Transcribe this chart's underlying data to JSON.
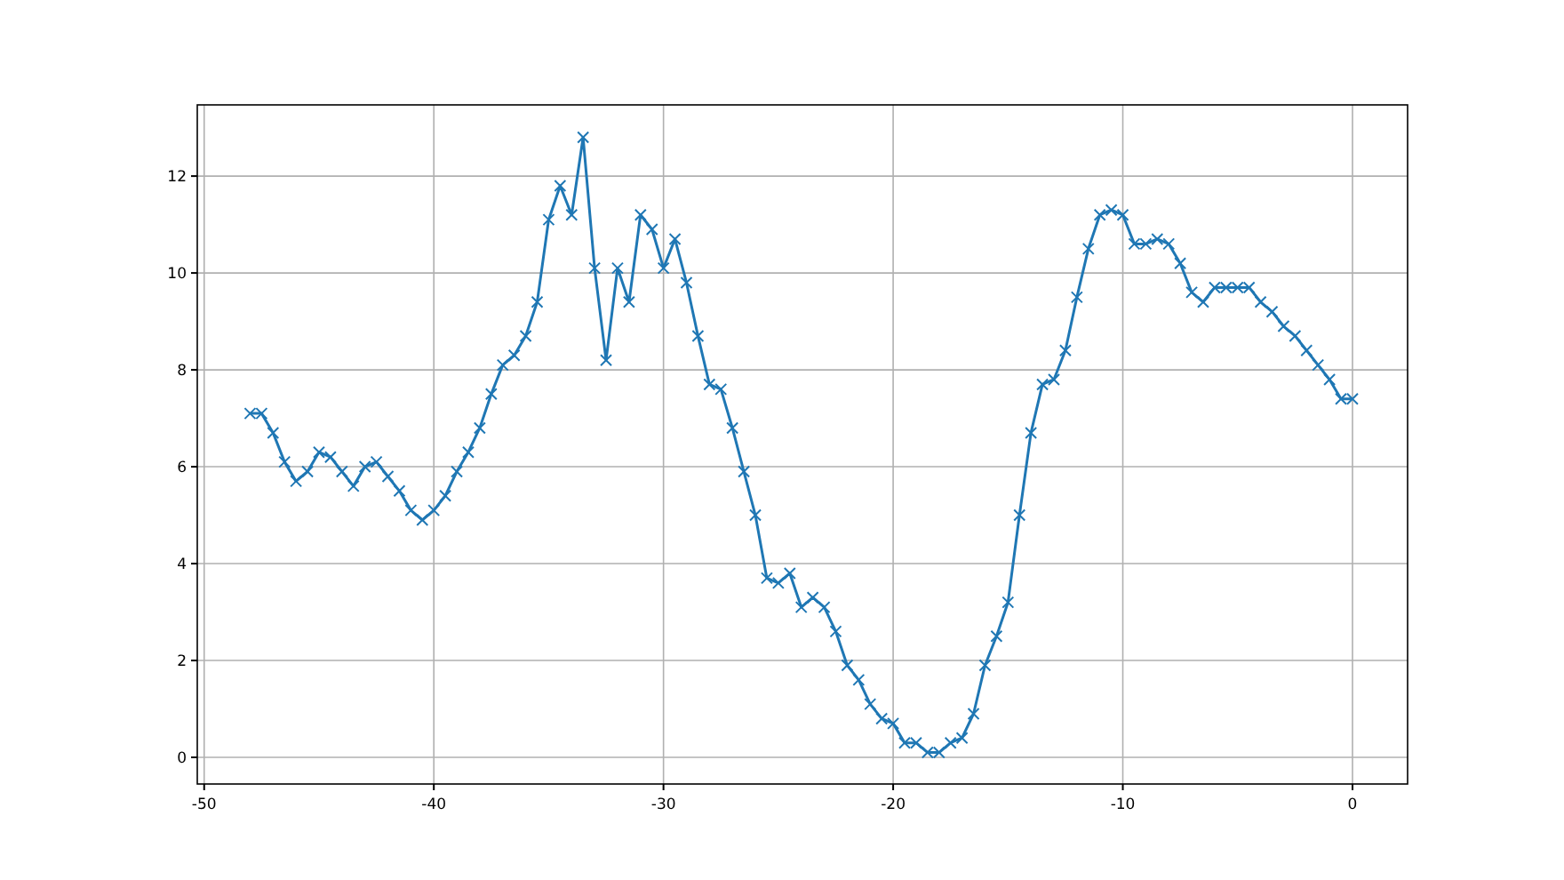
{
  "chart_data": {
    "type": "line",
    "x": [
      -48,
      -47.5,
      -47,
      -46.5,
      -46,
      -45.5,
      -45,
      -44.5,
      -44,
      -43.5,
      -43,
      -42.5,
      -42,
      -41.5,
      -41,
      -40.5,
      -40,
      -39.5,
      -39,
      -38.5,
      -38,
      -37.5,
      -37,
      -36.5,
      -36,
      -35.5,
      -35,
      -34.5,
      -34,
      -33.5,
      -33,
      -32.5,
      -32,
      -31.5,
      -31,
      -30.5,
      -30,
      -29.5,
      -29,
      -28.5,
      -28,
      -27.5,
      -27,
      -26.5,
      -26,
      -25.5,
      -25,
      -24.5,
      -24,
      -23.5,
      -23,
      -22.5,
      -22,
      -21.5,
      -21,
      -20.5,
      -20,
      -19.5,
      -19,
      -18.5,
      -18,
      -17.5,
      -17,
      -16.5,
      -16,
      -15.5,
      -15,
      -14.5,
      -14,
      -13.5,
      -13,
      -12.5,
      -12,
      -11.5,
      -11,
      -10.5,
      -10,
      -9.5,
      -9,
      -8.5,
      -8,
      -7.5,
      -7,
      -6.5,
      -6,
      -5.5,
      -5,
      -4.5,
      -4,
      -3.5,
      -3,
      -2.5,
      -2,
      -1.5,
      -1,
      -0.5,
      0
    ],
    "series": [
      {
        "color": "#1f77b4",
        "values": [
          7.1,
          7.1,
          6.7,
          6.1,
          5.7,
          5.9,
          6.3,
          6.2,
          5.9,
          5.6,
          6.0,
          6.1,
          5.8,
          5.5,
          5.1,
          4.9,
          5.1,
          5.4,
          5.9,
          6.3,
          6.8,
          7.5,
          8.1,
          8.3,
          8.7,
          9.4,
          11.1,
          11.8,
          11.2,
          12.8,
          10.1,
          8.2,
          10.1,
          9.4,
          11.2,
          10.9,
          10.1,
          10.7,
          9.8,
          8.7,
          7.7,
          7.6,
          6.8,
          5.9,
          5.0,
          3.7,
          3.6,
          3.8,
          3.1,
          3.3,
          3.1,
          2.6,
          1.9,
          1.6,
          1.1,
          0.8,
          0.7,
          0.3,
          0.3,
          0.1,
          0.1,
          0.3,
          0.4,
          0.9,
          1.9,
          2.5,
          3.2,
          5.0,
          6.7,
          7.7,
          7.8,
          8.4,
          9.5,
          10.5,
          11.2,
          11.3,
          11.2,
          10.6,
          10.6,
          10.7,
          10.6,
          10.2,
          9.6,
          9.4,
          9.7,
          9.7,
          9.7,
          9.7,
          9.4,
          9.2,
          8.9,
          8.7,
          8.4,
          8.1,
          7.8,
          7.4,
          7.4
        ]
      }
    ],
    "xlim": [
      -50.3,
      2.4
    ],
    "ylim": [
      -0.55,
      13.47
    ],
    "xticks": [
      -50,
      -40,
      -30,
      -20,
      -10,
      0
    ],
    "yticks": [
      0,
      2,
      4,
      6,
      8,
      10,
      12
    ],
    "grid": true,
    "marker": "cross",
    "line_style": "solid"
  }
}
